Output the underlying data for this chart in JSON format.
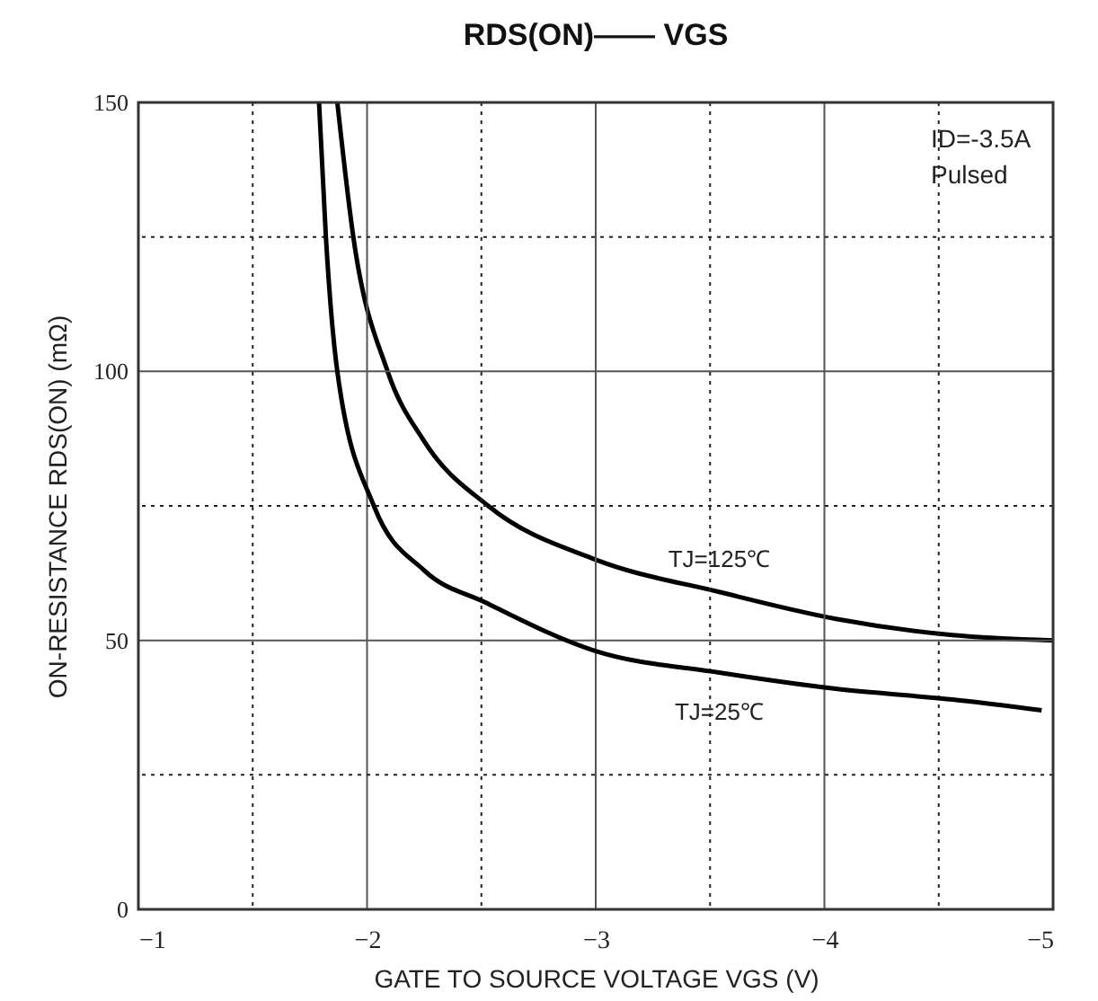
{
  "chart_data": {
    "type": "line",
    "title": "RDS(ON)—— VGS",
    "xlabel": "GATE TO SOURCE VOLTAGE   VGS   (V)",
    "ylabel": "ON-RESISTANCE   RDS(ON)   (mΩ)",
    "xlim": [
      -1,
      -5
    ],
    "ylim": [
      0,
      150
    ],
    "xticks": [
      -1,
      {
        "value": -1.5,
        "label": null
      },
      -2,
      {
        "value": -2.5,
        "label": null
      },
      -3,
      {
        "value": -3.5,
        "label": null
      },
      -4,
      {
        "value": -4.5,
        "label": null
      },
      -5
    ],
    "yticks": [
      0,
      {
        "value": 25,
        "label": null
      },
      50,
      {
        "value": 75,
        "label": null
      },
      100,
      {
        "value": 125,
        "label": null
      },
      150
    ],
    "grid": true,
    "marker": "none",
    "line_style": "solid",
    "series": [
      {
        "name": "TJ=125℃",
        "color": "#000000",
        "x": [
          -1.87,
          -1.94,
          -2.09,
          -2.25,
          -2.53,
          -3.0,
          -3.54,
          -4.05,
          -4.56,
          -5.0
        ],
        "values": [
          150,
          125,
          100,
          87,
          75,
          65,
          59,
          54,
          51,
          50
        ]
      },
      {
        "name": "TJ=25℃",
        "color": "#000000",
        "x": [
          -1.79,
          -1.82,
          -1.87,
          -2.03,
          -2.25,
          -2.52,
          -3.0,
          -3.54,
          -4.05,
          -4.56,
          -4.95
        ],
        "values": [
          150,
          125,
          100,
          75,
          63,
          57,
          48,
          44,
          41,
          39,
          37
        ]
      }
    ],
    "annotations": [
      "ID=-3.5A",
      "Pulsed"
    ]
  }
}
